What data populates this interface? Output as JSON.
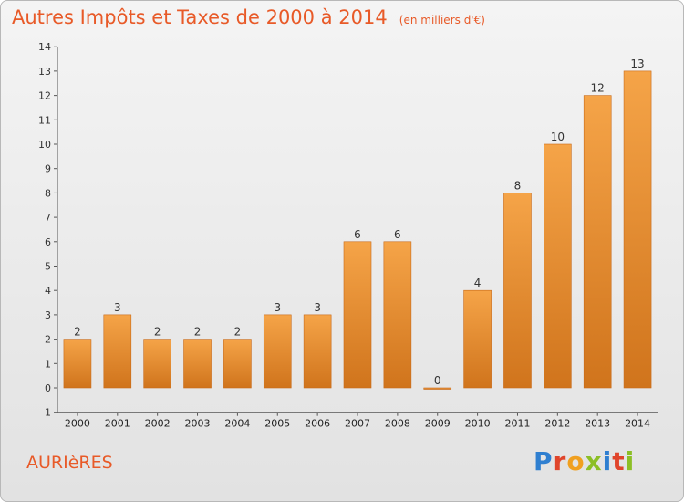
{
  "header": {
    "title": "Autres Impôts et Taxes de 2000 à 2014",
    "subtitle": "(en milliers d'€)"
  },
  "commune": "AURIèRES",
  "logo": {
    "text": "Proxiti",
    "letters": [
      {
        "ch": "P",
        "color": "#2f7fd0"
      },
      {
        "ch": "r",
        "color": "#e0452b"
      },
      {
        "ch": "o",
        "color": "#f0a020"
      },
      {
        "ch": "x",
        "color": "#8cbf26"
      },
      {
        "ch": "i",
        "color": "#2f7fd0"
      },
      {
        "ch": "t",
        "color": "#e0452b"
      },
      {
        "ch": "i",
        "color": "#8cbf26"
      }
    ]
  },
  "colors": {
    "bar_top": "#f5a448",
    "bar_bottom": "#d0741c",
    "bar_stroke": "#c86a18",
    "accent": "#e85a28"
  },
  "chart_data": {
    "type": "bar",
    "categories": [
      "2000",
      "2001",
      "2002",
      "2003",
      "2004",
      "2005",
      "2006",
      "2007",
      "2008",
      "2009",
      "2010",
      "2011",
      "2012",
      "2013",
      "2014"
    ],
    "values": [
      2,
      3,
      2,
      2,
      2,
      3,
      3,
      6,
      6,
      0,
      4,
      8,
      10,
      12,
      13
    ],
    "ylim": [
      -1,
      14
    ],
    "yticks": [
      -1,
      0,
      1,
      2,
      3,
      4,
      5,
      6,
      7,
      8,
      9,
      10,
      11,
      12,
      13,
      14
    ],
    "ytick_labels": [
      "-1",
      "0",
      "1",
      "2",
      "3",
      "4",
      "5",
      "6",
      "7",
      "8",
      "9",
      "10",
      "11",
      "12",
      "13",
      "14"
    ],
    "grid": false,
    "data_labels": true
  }
}
